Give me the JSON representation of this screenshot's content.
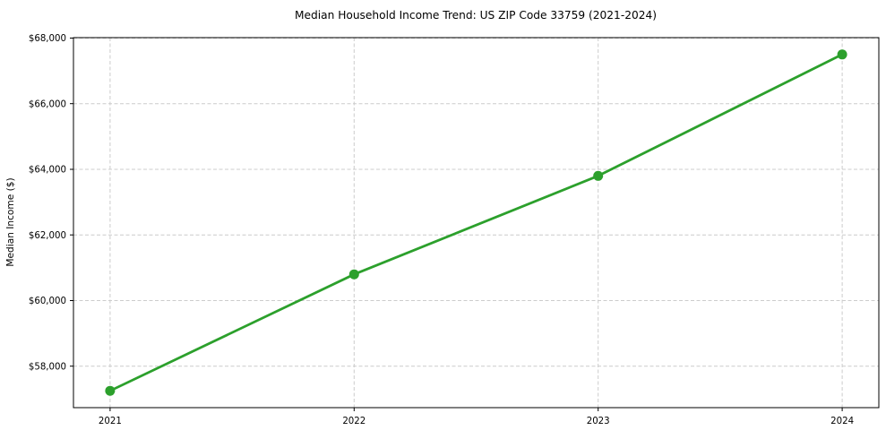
{
  "chart_data": {
    "type": "line",
    "title": "Median Household Income Trend: US ZIP Code 33759 (2021-2024)",
    "xlabel": "",
    "ylabel": "Median Income ($)",
    "x": [
      2021,
      2022,
      2023,
      2024
    ],
    "x_tick_labels": [
      "2021",
      "2022",
      "2023",
      "2024"
    ],
    "series": [
      {
        "values": [
          57250,
          60800,
          63800,
          67500
        ],
        "color": "#2ca02c",
        "marker": "circle",
        "marker_size": 5.5,
        "line_width": 2.8
      }
    ],
    "yticks": [
      58000,
      60000,
      62000,
      64000,
      66000,
      68000
    ],
    "ytick_labels": [
      "$58,000",
      "$60,000",
      "$62,000",
      "$64,000",
      "$66,000",
      "$68,000"
    ],
    "ylim": [
      56737,
      68013
    ],
    "xlim": [
      2020.85,
      2024.15
    ],
    "grid": "on",
    "grid_style": "dashed",
    "grid_color": "#cccccc",
    "axis_color": "#000000",
    "tick_label_color": "#000000",
    "background": "#ffffff",
    "legend": "none"
  }
}
